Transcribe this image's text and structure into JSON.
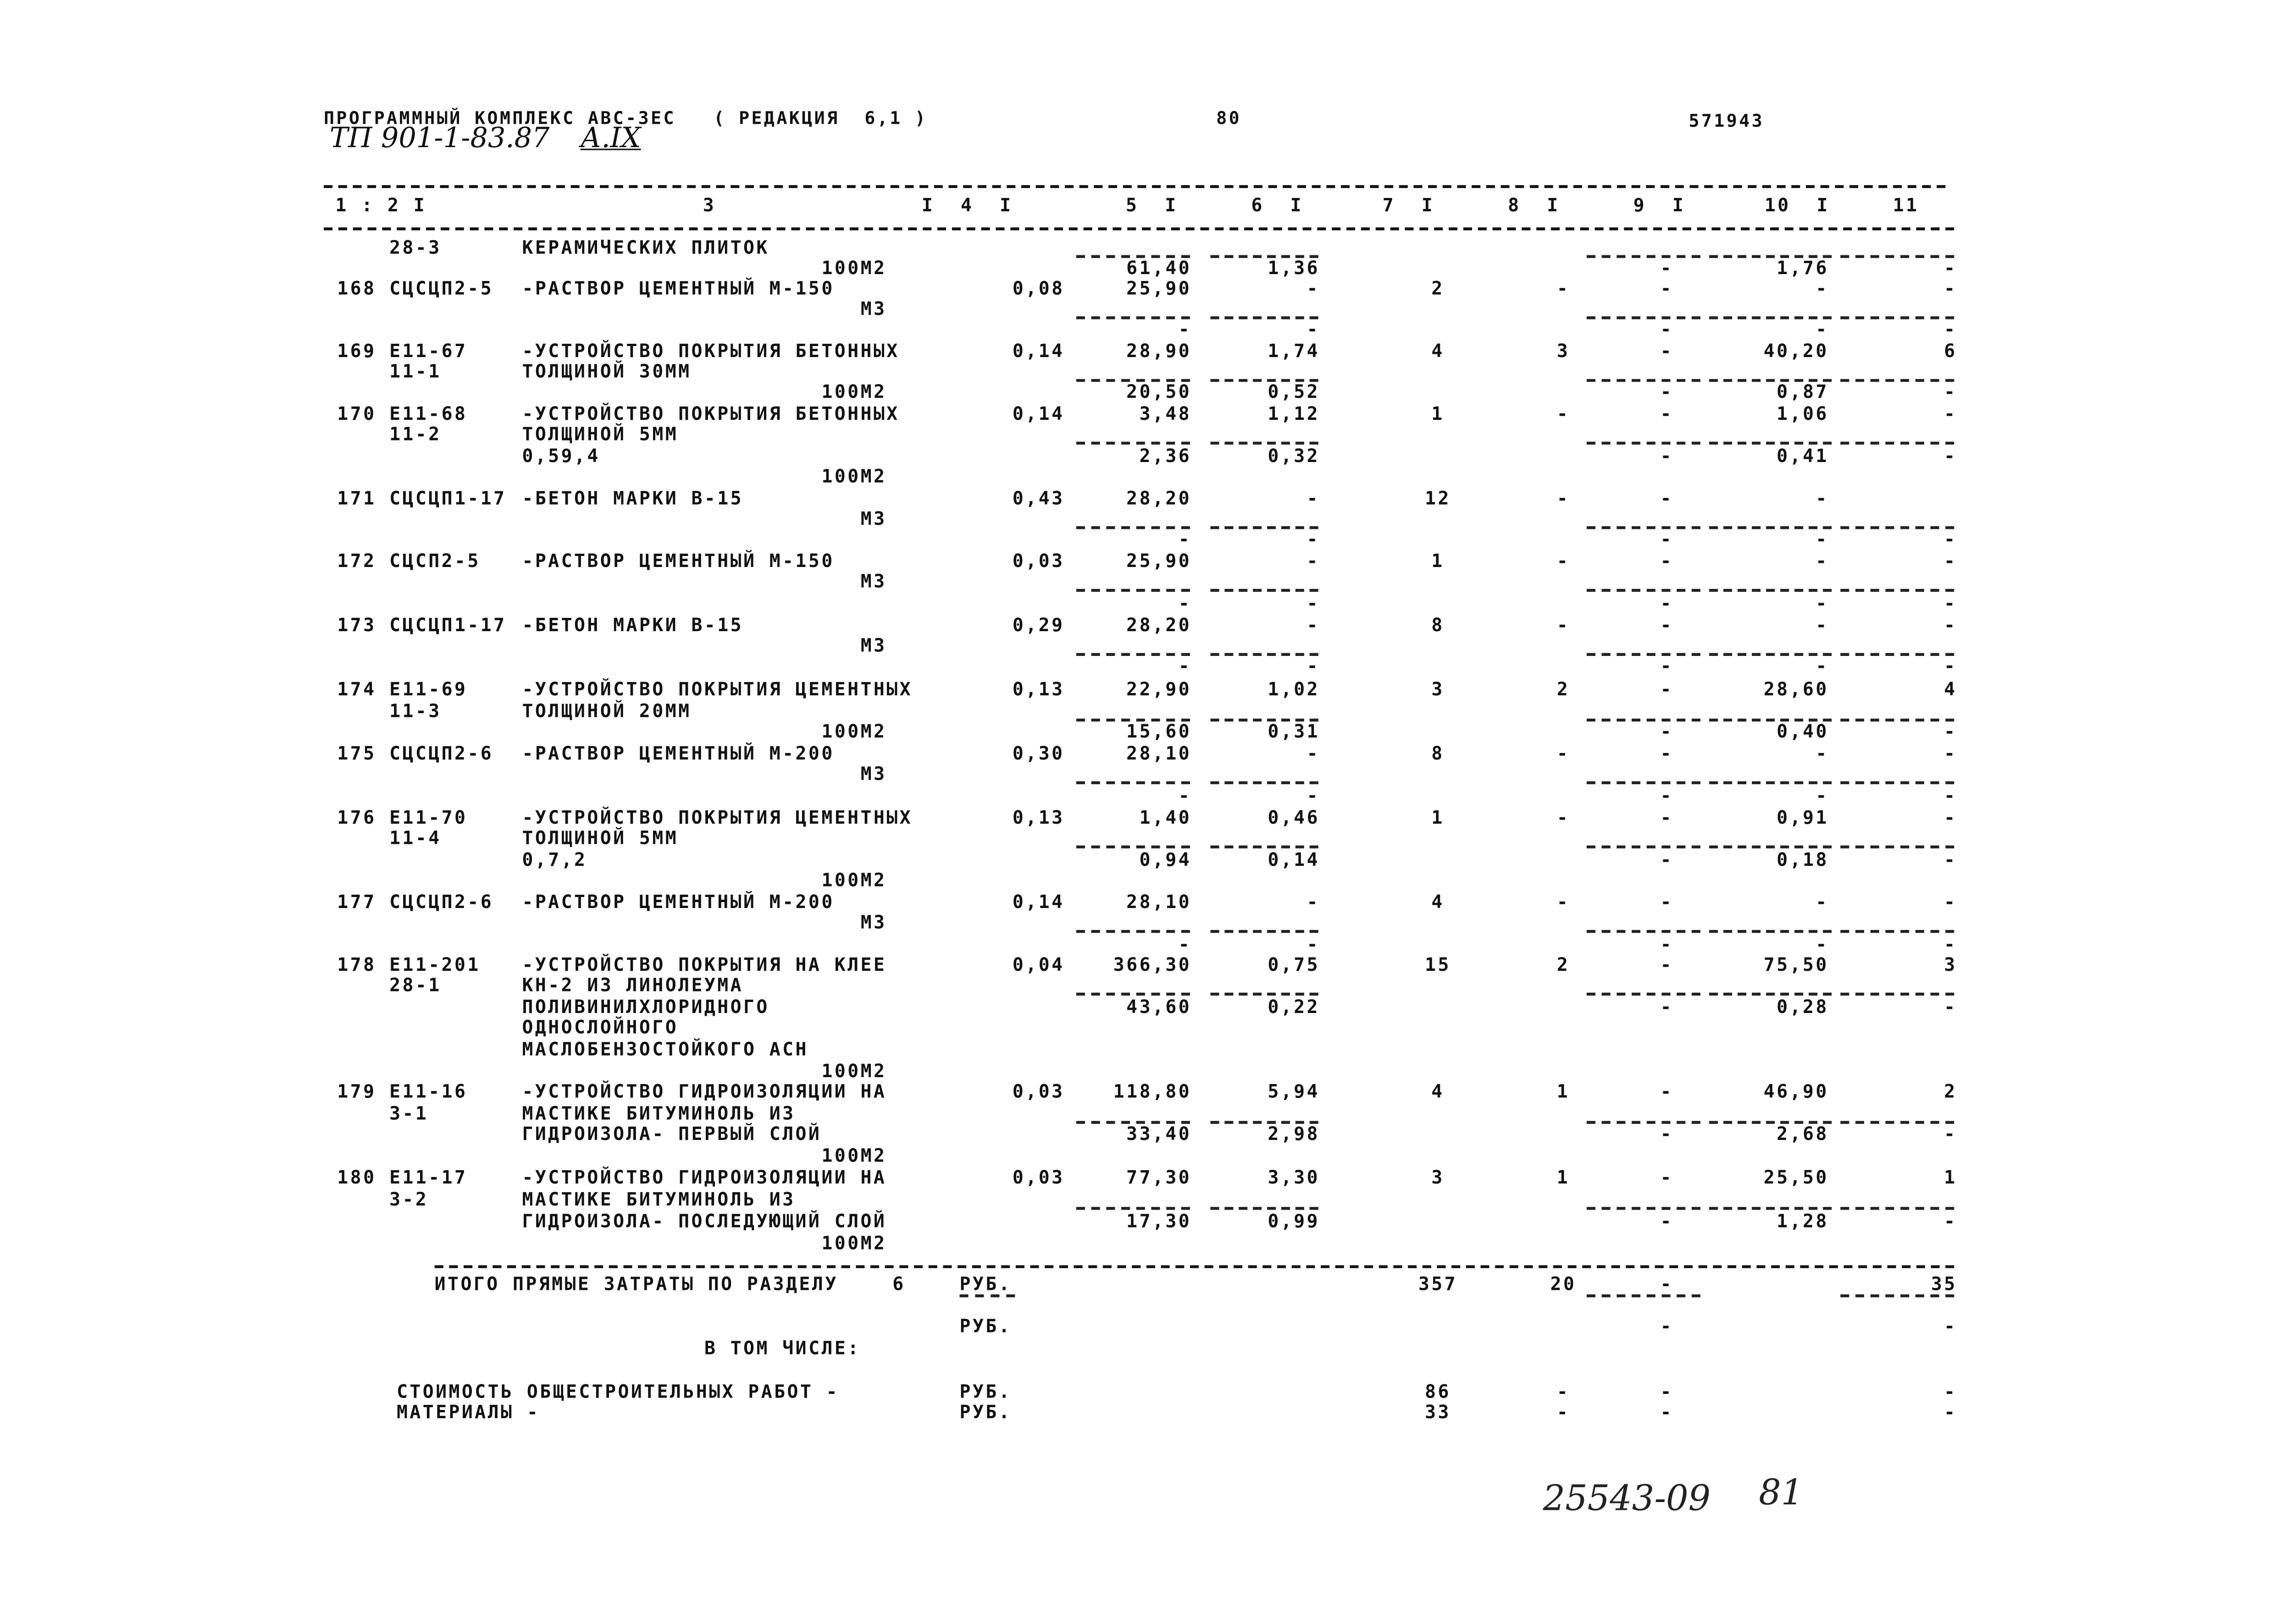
{
  "header": {
    "program": "ПРОГРАММНЫЙ КОМПЛЕКС АВС-3ЕС   ( РЕДАКЦИЯ  6,1 )",
    "page_number": "80",
    "doc_number": "571943",
    "project_code": "ТП 901-1-83.87",
    "album": "А.IX"
  },
  "columns_header": [
    "1 : 2 I",
    "3",
    "I  4  I",
    "5  I",
    "6  I",
    "7  I",
    "8  I",
    "9  I",
    "10  I",
    "11"
  ],
  "lines": [
    {
      "code": "28-3",
      "desc": "КЕРАМИЧЕСКИХ ПЛИТОК",
      "rules": [
        "c5",
        "c6",
        "c9",
        "c10",
        "c11"
      ]
    },
    {
      "unit": "100М2",
      "c5": "61,40",
      "c6": "1,36",
      "c9": "-",
      "c10": "1,76",
      "c11": "-"
    },
    {
      "num": "168",
      "code": "СЦСЦП2-5",
      "desc": "-РАСТВОР ЦЕМЕНТНЫЙ М-150",
      "c4": "0,08",
      "c5": "25,90",
      "c6": "-",
      "c7": "2",
      "c8": "-",
      "c9": "-",
      "c10": "-",
      "c11": "-"
    },
    {
      "unit": "М3",
      "rules": [
        "c5",
        "c6",
        "c9",
        "c10",
        "c11"
      ]
    },
    {
      "c5": "-",
      "c6": "-",
      "c9": "-",
      "c10": "-",
      "c11": "-"
    },
    {
      "num": "169",
      "code": "Е11-67",
      "desc": "-УСТРОЙСТВО ПОКРЫТИЯ БЕТОННЫХ",
      "c4": "0,14",
      "c5": "28,90",
      "c6": "1,74",
      "c7": "4",
      "c8": "3",
      "c9": "-",
      "c10": "40,20",
      "c11": "6"
    },
    {
      "code": "11-1",
      "desc": "ТОЛЩИНОЙ 30ММ",
      "rules": [
        "c5",
        "c6",
        "c9",
        "c10",
        "c11"
      ]
    },
    {
      "unit": "100М2",
      "c5": "20,50",
      "c6": "0,52",
      "c9": "-",
      "c10": "0,87",
      "c11": "-"
    },
    {
      "num": "170",
      "code": "Е11-68",
      "desc": "-УСТРОЙСТВО ПОКРЫТИЯ БЕТОННЫХ",
      "c4": "0,14",
      "c5": "3,48",
      "c6": "1,12",
      "c7": "1",
      "c8": "-",
      "c9": "-",
      "c10": "1,06",
      "c11": "-"
    },
    {
      "code": "11-2",
      "desc": "ТОЛЩИНОЙ 5ММ",
      "rules": [
        "c5",
        "c6",
        "c9",
        "c10",
        "c11"
      ]
    },
    {
      "desc": "0,59,4",
      "c5": "2,36",
      "c6": "0,32",
      "c9": "-",
      "c10": "0,41",
      "c11": "-"
    },
    {
      "unit": "100М2"
    },
    {
      "num": "171",
      "code": "СЦСЦП1-17",
      "desc": "-БЕТОН МАРКИ В-15",
      "c4": "0,43",
      "c5": "28,20",
      "c6": "-",
      "c7": "12",
      "c8": "-",
      "c9": "-",
      "c10": "-"
    },
    {
      "unit": "М3",
      "rules": [
        "c5",
        "c6",
        "c9",
        "c10",
        "c11"
      ]
    },
    {
      "c5": "-",
      "c6": "-",
      "c9": "-",
      "c10": "-",
      "c11": "-"
    },
    {
      "num": "172",
      "code": "СЦСП2-5",
      "desc": "-РАСТВОР ЦЕМЕНТНЫЙ М-150",
      "c4": "0,03",
      "c5": "25,90",
      "c6": "-",
      "c7": "1",
      "c8": "-",
      "c9": "-",
      "c10": "-",
      "c11": "-"
    },
    {
      "unit": "М3",
      "rules": [
        "c5",
        "c6",
        "c9",
        "c10",
        "c11"
      ]
    },
    {
      "c5": "-",
      "c6": "-",
      "c9": "-",
      "c10": "-",
      "c11": "-"
    },
    {
      "num": "173",
      "code": "СЦСЦП1-17",
      "desc": "-БЕТОН МАРКИ В-15",
      "c4": "0,29",
      "c5": "28,20",
      "c6": "-",
      "c7": "8",
      "c8": "-",
      "c9": "-",
      "c10": "-",
      "c11": "-"
    },
    {
      "unit": "М3",
      "rules": [
        "c5",
        "c6",
        "c9",
        "c10",
        "c11"
      ]
    },
    {
      "c5": "-",
      "c6": "-",
      "c9": "-",
      "c10": "-",
      "c11": "-"
    },
    {
      "num": "174",
      "code": "Е11-69",
      "desc": "-УСТРОЙСТВО ПОКРЫТИЯ ЦЕМЕНТНЫХ",
      "c4": "0,13",
      "c5": "22,90",
      "c6": "1,02",
      "c7": "3",
      "c8": "2",
      "c9": "-",
      "c10": "28,60",
      "c11": "4"
    },
    {
      "code": "11-3",
      "desc": "ТОЛЩИНОЙ 20ММ",
      "rules": [
        "c5",
        "c6",
        "c9",
        "c10",
        "c11"
      ]
    },
    {
      "unit": "100М2",
      "c5": "15,60",
      "c6": "0,31",
      "c9": "-",
      "c10": "0,40",
      "c11": "-"
    },
    {
      "num": "175",
      "code": "СЦСЦП2-6",
      "desc": "-РАСТВОР ЦЕМЕНТНЫЙ М-200",
      "c4": "0,30",
      "c5": "28,10",
      "c6": "-",
      "c7": "8",
      "c8": "-",
      "c9": "-",
      "c10": "-",
      "c11": "-"
    },
    {
      "unit": "М3",
      "rules": [
        "c5",
        "c6",
        "c9",
        "c10",
        "c11"
      ]
    },
    {
      "c5": "-",
      "c6": "-",
      "c9": "-",
      "c10": "-",
      "c11": "-"
    },
    {
      "num": "176",
      "code": "Е11-70",
      "desc": "-УСТРОЙСТВО ПОКРЫТИЯ ЦЕМЕНТНЫХ",
      "c4": "0,13",
      "c5": "1,40",
      "c6": "0,46",
      "c7": "1",
      "c8": "-",
      "c9": "-",
      "c10": "0,91",
      "c11": "-"
    },
    {
      "code": "11-4",
      "desc": "ТОЛЩИНОЙ 5ММ",
      "rules": [
        "c5",
        "c6",
        "c9",
        "c10",
        "c11"
      ]
    },
    {
      "desc": "0,7,2",
      "c5": "0,94",
      "c6": "0,14",
      "c9": "-",
      "c10": "0,18",
      "c11": "-"
    },
    {
      "unit": "100М2"
    },
    {
      "num": "177",
      "code": "СЦСЦП2-6",
      "desc": "-РАСТВОР ЦЕМЕНТНЫЙ М-200",
      "c4": "0,14",
      "c5": "28,10",
      "c6": "-",
      "c7": "4",
      "c8": "-",
      "c9": "-",
      "c10": "-",
      "c11": "-"
    },
    {
      "unit": "М3",
      "rules": [
        "c5",
        "c6",
        "c9",
        "c10",
        "c11"
      ]
    },
    {
      "c5": "-",
      "c6": "-",
      "c9": "-",
      "c10": "-",
      "c11": "-"
    },
    {
      "num": "178",
      "code": "Е11-201",
      "desc": "-УСТРОЙСТВО ПОКРЫТИЯ НА КЛЕЕ",
      "c4": "0,04",
      "c5": "366,30",
      "c6": "0,75",
      "c7": "15",
      "c8": "2",
      "c9": "-",
      "c10": "75,50",
      "c11": "3"
    },
    {
      "code": "28-1",
      "desc": "КН-2 ИЗ ЛИНОЛЕУМА",
      "rules": [
        "c5",
        "c6",
        "c9",
        "c10",
        "c11"
      ]
    },
    {
      "desc": "ПОЛИВИНИЛХЛОРИДНОГО",
      "c5": "43,60",
      "c6": "0,22",
      "c9": "-",
      "c10": "0,28",
      "c11": "-"
    },
    {
      "desc": "ОДНОСЛОЙНОГО"
    },
    {
      "desc": "МАСЛОБЕНЗОСТОЙКОГО АСН"
    },
    {
      "unit": "100М2"
    },
    {
      "num": "179",
      "code": "Е11-16",
      "desc": "-УСТРОЙСТВО ГИДРОИЗОЛЯЦИИ НА",
      "c4": "0,03",
      "c5": "118,80",
      "c6": "5,94",
      "c7": "4",
      "c8": "1",
      "c9": "-",
      "c10": "46,90",
      "c11": "2"
    },
    {
      "code": "3-1",
      "desc": "МАСТИКЕ БИТУМИНОЛЬ ИЗ",
      "rules": [
        "c5",
        "c6",
        "c9",
        "c10",
        "c11"
      ]
    },
    {
      "desc": "ГИДРОИЗОЛА- ПЕРВЫЙ СЛОЙ",
      "c5": "33,40",
      "c6": "2,98",
      "c9": "-",
      "c10": "2,68",
      "c11": "-"
    },
    {
      "unit": "100М2"
    },
    {
      "num": "180",
      "code": "Е11-17",
      "desc": "-УСТРОЙСТВО ГИДРОИЗОЛЯЦИИ НА",
      "c4": "0,03",
      "c5": "77,30",
      "c6": "3,30",
      "c7": "3",
      "c8": "1",
      "c9": "-",
      "c10": "25,50",
      "c11": "1"
    },
    {
      "code": "3-2",
      "desc": "МАСТИКЕ БИТУМИНОЛЬ ИЗ",
      "rules": [
        "c5",
        "c6",
        "c9",
        "c10",
        "c11"
      ]
    },
    {
      "desc": "ГИДРОИЗОЛА- ПОСЛЕДУЮЩИЙ СЛОЙ",
      "c5": "17,30",
      "c6": "0,99",
      "c9": "-",
      "c10": "1,28",
      "c11": "-"
    },
    {
      "unit": "100М2"
    }
  ],
  "totals": [
    {
      "lbl": "ИТОГО ПРЯМЫЕ ЗАТРАТЫ ПО РАЗДЕЛУ",
      "sec": "6",
      "rub": "РУБ.",
      "c7": "357",
      "c8": "20",
      "c9": "-",
      "c11": "35",
      "rules": [
        "rub",
        "c9",
        "c11"
      ]
    },
    {
      "rub": "РУБ.",
      "c9": "-",
      "c11": "-"
    },
    {
      "sub": "В ТОМ ЧИСЛЕ:"
    },
    {
      "lbl2": "СТОИМОСТЬ ОБЩЕСТРОИТЕЛЬНЫХ РАБОТ -",
      "rub": "РУБ.",
      "c7": "86",
      "c8": "-",
      "c9": "-",
      "c11": "-"
    },
    {
      "lbl2": "МАТЕРИАЛЫ -",
      "rub": "РУБ.",
      "c7": "33",
      "c8": "-",
      "c9": "-",
      "c11": "-"
    }
  ],
  "handwritten": {
    "inventory": "25543-09",
    "sheet": "81"
  }
}
